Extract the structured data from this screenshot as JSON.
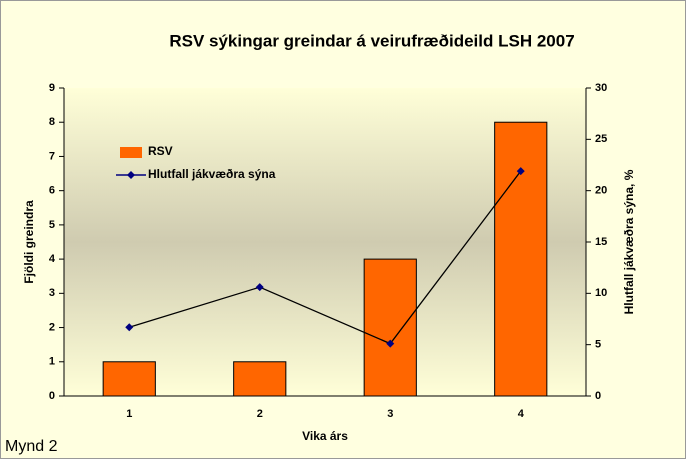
{
  "chart_data": {
    "type": "bar",
    "title": "RSV sýkingar greindar á veirufræðideild LSH 2007",
    "caption": "Mynd 2",
    "x_label": "Vika árs",
    "y_label": "Fjöldi greindra",
    "y2_label": "Hlutfall jákvæðra sýna, %",
    "categories": [
      "1",
      "2",
      "3",
      "4"
    ],
    "series": [
      {
        "name": "RSV",
        "type": "bar",
        "color": "#ff6600",
        "values": [
          1,
          1,
          4,
          8
        ]
      },
      {
        "name": "Hlutfall jákvæðra sýna",
        "type": "line",
        "axis": "y2",
        "color": "#000080",
        "values": [
          6.7,
          10.6,
          5.1,
          21.9
        ]
      }
    ],
    "ylim": [
      0,
      9
    ],
    "yticks": [
      0,
      1,
      2,
      3,
      4,
      5,
      6,
      7,
      8,
      9
    ],
    "y2lim": [
      0,
      30
    ],
    "y2ticks": [
      0,
      5,
      10,
      15,
      20,
      25,
      30
    ],
    "legend": "upper left"
  }
}
